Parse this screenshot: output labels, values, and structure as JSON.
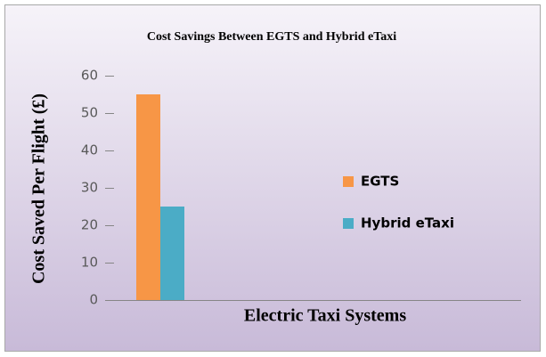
{
  "chart_data": {
    "type": "bar",
    "title": "Cost Savings Between EGTS and Hybrid eTaxi",
    "x_label": "Electric Taxi Systems",
    "y_label": "Cost Saved Per Flight (£)",
    "categories": [
      null
    ],
    "series": [
      {
        "name": "EGTS",
        "color": "#f79646",
        "values": [
          55
        ]
      },
      {
        "name": "Hybrid eTaxi",
        "color": "#4bacc6",
        "values": [
          25
        ]
      }
    ],
    "ylim": [
      0,
      60
    ],
    "yticks": [
      0,
      10,
      20,
      30,
      40,
      50,
      60
    ],
    "grid": false,
    "legend": "right"
  }
}
